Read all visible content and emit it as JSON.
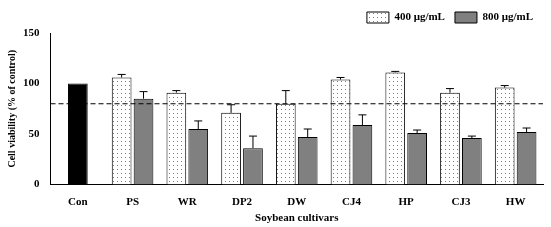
{
  "chart_data": {
    "type": "bar",
    "x_label": "Soybean cultivars",
    "y_label": "Cell viability (% of control)",
    "categories": [
      "Con",
      "PS",
      "WR",
      "DP2",
      "DW",
      "CJ4",
      "HP",
      "CJ3",
      "HW"
    ],
    "series": [
      {
        "color": "#000000",
        "values": [
          100,
          null,
          null,
          null,
          null,
          null,
          null,
          null,
          null
        ],
        "errors": [
          null,
          null,
          null,
          null,
          null,
          null,
          null,
          null,
          null
        ]
      },
      {
        "name": "400 μg/mL",
        "color": "#ffffff",
        "values": [
          null,
          106,
          91,
          71,
          80,
          104,
          111,
          91,
          96
        ],
        "errors": [
          null,
          3,
          2,
          8,
          13,
          2,
          1,
          4,
          2
        ]
      },
      {
        "name": "800 μg/mL",
        "color": "#808080",
        "values": [
          null,
          85,
          55,
          36,
          47,
          59,
          51,
          46,
          52
        ],
        "errors": [
          null,
          7,
          8,
          12,
          8,
          10,
          3,
          2,
          4
        ]
      }
    ],
    "reference_line": {
      "value": 80,
      "line_style": "dashed"
    },
    "ylim": [
      0,
      150
    ],
    "yticks": [
      0,
      50,
      100,
      150
    ],
    "grid": false,
    "legend": "upper right"
  }
}
